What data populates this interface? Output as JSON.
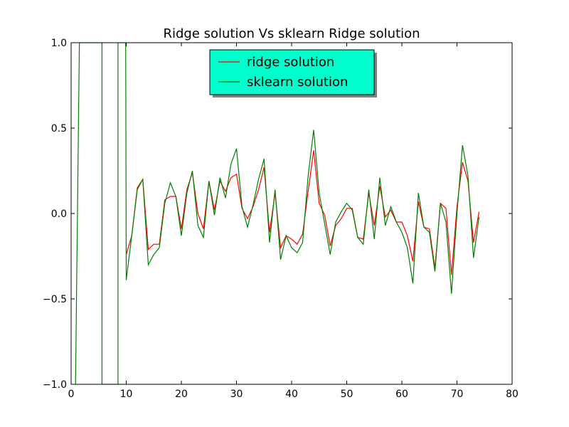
{
  "chart_data": {
    "type": "line",
    "title": "Ridge solution Vs sklearn Ridge solution",
    "xlabel": "",
    "ylabel": "",
    "xlim": [
      0,
      80
    ],
    "ylim": [
      -1.0,
      1.0
    ],
    "x_ticks": [
      0,
      10,
      20,
      30,
      40,
      50,
      60,
      70,
      80
    ],
    "x_tick_labels": [
      "0",
      "10",
      "20",
      "30",
      "40",
      "50",
      "60",
      "70",
      "80"
    ],
    "y_ticks": [
      -1.0,
      -0.5,
      0.0,
      0.5,
      1.0
    ],
    "y_tick_labels": [
      "−1.0",
      "−0.5",
      "0.0",
      "0.5",
      "1.0"
    ],
    "grid": false,
    "legend_position": "top-center",
    "legend_background": "#00ffcc",
    "series": [
      {
        "name": "ridge solution",
        "color": "#ff0000",
        "x": [
          10,
          11,
          12,
          13,
          14,
          15,
          16,
          17,
          18,
          19,
          20,
          21,
          22,
          23,
          24,
          25,
          26,
          27,
          28,
          29,
          30,
          31,
          32,
          33,
          34,
          35,
          36,
          37,
          38,
          39,
          40,
          41,
          42,
          43,
          44,
          45,
          46,
          47,
          48,
          49,
          50,
          51,
          52,
          53,
          54,
          55,
          56,
          57,
          58,
          59,
          60,
          61,
          62,
          63,
          64,
          65,
          66,
          67,
          68,
          69,
          70,
          71,
          72,
          73,
          74
        ],
        "y": [
          -0.24,
          -0.13,
          0.15,
          0.2,
          -0.21,
          -0.18,
          -0.18,
          0.08,
          0.1,
          0.1,
          -0.09,
          0.14,
          0.24,
          0.0,
          -0.09,
          0.19,
          0.02,
          0.19,
          0.13,
          0.21,
          0.23,
          0.03,
          -0.03,
          0.04,
          0.14,
          0.27,
          -0.11,
          0.12,
          -0.2,
          -0.13,
          -0.15,
          -0.18,
          -0.12,
          0.13,
          0.37,
          0.06,
          -0.01,
          -0.19,
          -0.07,
          -0.03,
          0.03,
          0.03,
          -0.14,
          -0.15,
          0.12,
          -0.07,
          0.16,
          -0.02,
          0.02,
          -0.05,
          -0.05,
          -0.13,
          -0.28,
          0.07,
          -0.08,
          -0.09,
          -0.32,
          0.06,
          0.03,
          -0.36,
          0.04,
          0.3,
          0.19,
          -0.17,
          0.01
        ]
      },
      {
        "name": "sklearn solution",
        "color": "#008000",
        "x": [
          0.8,
          1.5,
          5.6,
          5.6,
          8.5,
          8.5,
          9.9,
          10,
          11,
          12,
          13,
          14,
          15,
          16,
          17,
          18,
          19,
          20,
          21,
          22,
          23,
          24,
          25,
          26,
          27,
          28,
          29,
          30,
          31,
          32,
          33,
          34,
          35,
          36,
          37,
          38,
          39,
          40,
          41,
          42,
          43,
          44,
          45,
          46,
          47,
          48,
          49,
          50,
          51,
          52,
          53,
          54,
          55,
          56,
          57,
          58,
          59,
          60,
          61,
          62,
          63,
          64,
          65,
          66,
          67,
          68,
          69,
          70,
          71,
          72,
          73,
          74
        ],
        "y": [
          -1.0,
          1.0,
          1.0,
          -1.0,
          -1.0,
          1.0,
          1.0,
          -0.39,
          -0.13,
          0.14,
          0.2,
          -0.3,
          -0.24,
          -0.2,
          0.06,
          0.18,
          0.1,
          -0.13,
          0.12,
          0.25,
          -0.07,
          -0.14,
          0.19,
          -0.01,
          0.21,
          0.09,
          0.29,
          0.38,
          0.04,
          -0.08,
          0.05,
          0.2,
          0.32,
          -0.17,
          0.14,
          -0.27,
          -0.13,
          -0.2,
          -0.23,
          -0.17,
          0.22,
          0.49,
          0.12,
          -0.06,
          -0.24,
          -0.05,
          0.01,
          0.06,
          0.02,
          -0.14,
          -0.18,
          0.14,
          -0.15,
          0.21,
          -0.07,
          0.04,
          -0.05,
          -0.11,
          -0.2,
          -0.41,
          0.12,
          -0.08,
          -0.11,
          -0.34,
          0.06,
          -0.05,
          -0.47,
          0.0,
          0.4,
          0.22,
          -0.26,
          -0.02
        ]
      }
    ]
  }
}
